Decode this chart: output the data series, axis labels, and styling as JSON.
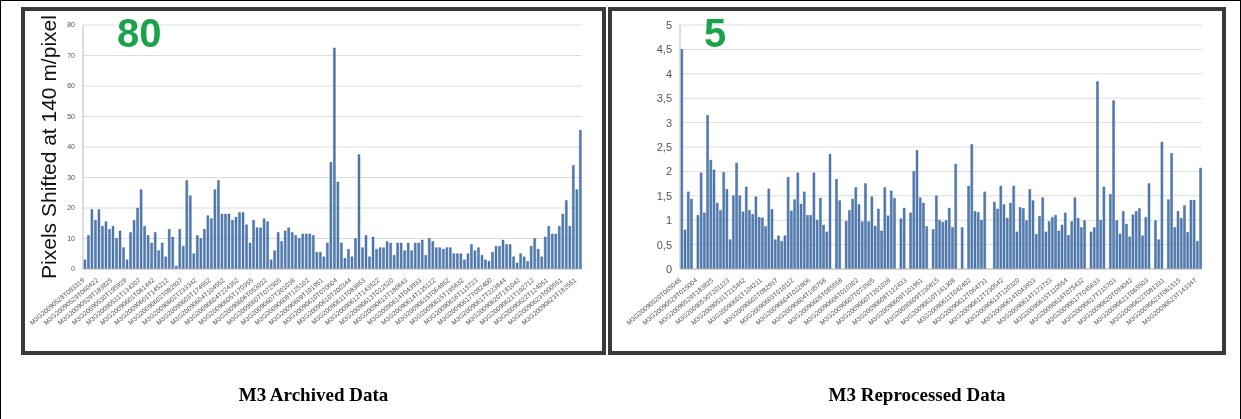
{
  "chart_data": [
    {
      "type": "bar",
      "title": "M3 Archived Data",
      "ylabel": "Pixels Shifted at 140 m/pixel",
      "annotations": [
        "80"
      ],
      "color": "#4f7fb8",
      "grid": "y",
      "ylim": [
        0,
        80
      ],
      "yticks": [
        0,
        10,
        20,
        30,
        40,
        50,
        60,
        70,
        80
      ],
      "categories": [
        "M3G20090528T083319",
        null,
        null,
        null,
        "M3G20090529T060422",
        null,
        null,
        null,
        "M3G20090529T183825",
        null,
        null,
        null,
        "M3G20090530T195929",
        null,
        null,
        null,
        "M3G20090531T134207",
        null,
        null,
        null,
        "M3G20090601T061442",
        null,
        null,
        null,
        "M3G20090601T145212",
        null,
        null,
        null,
        "M3G20090602T082937",
        null,
        null,
        null,
        "M3G20090602T233342",
        null,
        null,
        null,
        "M3G20090603T174552",
        null,
        null,
        null,
        "M3G20090604T104552",
        null,
        null,
        null,
        "M3G20090604T224352",
        null,
        null,
        null,
        "M3G20090605T170355",
        null,
        null,
        null,
        "M3G20090606T053022",
        null,
        null,
        null,
        "M3G20090607T072505",
        null,
        null,
        null,
        "M3G20090607T201038",
        null,
        null,
        null,
        "M3G20090608T125102",
        null,
        null,
        null,
        "M3G20090609T101951",
        null,
        null,
        null,
        "M3G20090610T070604",
        null,
        null,
        null,
        "M3G20090610T200344",
        null,
        null,
        null,
        "M3G20090611T083653",
        null,
        null,
        null,
        "M3G20090612T143522",
        null,
        null,
        null,
        "M3G20090613T022520",
        null,
        null,
        null,
        "M3G20090613T180643",
        null,
        null,
        null,
        "M3G20090614T043933",
        null,
        null,
        null,
        "M3G20090614T135122",
        null,
        null,
        null,
        "M3G20090615T064852",
        null,
        null,
        null,
        "M3G20090615T195632",
        null,
        null,
        null,
        "M3G20090616T115723",
        null,
        null,
        null,
        "M3G20090617T082400",
        null,
        null,
        null,
        "M3G20090617T223844",
        null,
        null,
        null,
        "M3G20090620T181042",
        null,
        null,
        null,
        "M3G20090621T192712",
        null,
        null,
        null,
        "M3G20090622T124051",
        null,
        null,
        null,
        "M3G20090623T000551",
        null,
        null,
        null,
        "M3G20090623T182551",
        null
      ],
      "values": [
        3,
        11,
        19.5,
        16,
        19.5,
        14,
        15.5,
        13,
        14,
        10,
        12.5,
        7,
        3,
        12,
        16,
        20,
        26,
        14,
        11,
        8.5,
        12,
        6,
        8.5,
        4,
        13,
        10.5,
        1,
        13,
        7.5,
        29,
        24,
        5,
        11,
        10,
        13,
        17.5,
        16.5,
        26,
        29,
        18,
        18,
        18,
        16,
        17,
        18.5,
        18.5,
        14.5,
        8.5,
        16,
        13.5,
        13.5,
        16.5,
        15.5,
        3,
        6,
        12,
        9,
        12.5,
        13.5,
        12,
        11,
        10,
        11.5,
        11.5,
        11.5,
        11,
        5.5,
        5.5,
        4,
        8.5,
        35,
        72.5,
        28.5,
        8.5,
        3.5,
        6.5,
        4,
        10,
        37.5,
        7,
        11,
        4,
        10.5,
        6.5,
        7,
        7,
        9,
        8.5,
        4.5,
        8.5,
        8.5,
        6,
        8.5,
        6,
        8.5,
        8.5,
        9.5,
        4.5,
        10,
        9,
        7,
        7,
        6.5,
        7,
        7,
        5,
        5,
        5,
        3,
        5,
        8,
        6,
        7,
        4.5,
        3,
        2.5,
        5.5,
        7.5,
        7.5,
        9.5,
        8,
        8,
        4,
        2,
        5,
        4,
        2.5,
        7.5,
        10,
        6.5,
        4,
        10.5,
        14,
        11.5,
        11.5,
        14,
        18,
        22.5,
        14,
        34,
        26,
        45.5
      ]
    },
    {
      "type": "bar",
      "title": "M3 Reprocessed Data",
      "annotations": [
        "5"
      ],
      "color": "#4f7fb8",
      "grid": "y",
      "ylim": [
        0,
        5
      ],
      "yticks": [
        0,
        {
          "value": 0.5,
          "label": "0,5"
        },
        1,
        {
          "value": 1.5,
          "label": "1,5"
        },
        2,
        {
          "value": 2.5,
          "label": "2,5"
        },
        3,
        {
          "value": 3.5,
          "label": "3,5"
        },
        4,
        {
          "value": 4.5,
          "label": "4,5"
        },
        5
      ],
      "categories": [
        "M3G20090520T065048",
        null,
        null,
        null,
        null,
        "M3G20090529T015004",
        null,
        null,
        null,
        null,
        "M3G20090529T183825",
        null,
        null,
        null,
        null,
        "M3G20090530T201123",
        null,
        null,
        null,
        null,
        "M3G20090531T215442",
        null,
        null,
        null,
        null,
        "M3G20090601T104211",
        null,
        null,
        null,
        null,
        "M3G20090602T082937",
        null,
        null,
        null,
        null,
        "M3G20090603T010112",
        null,
        null,
        null,
        null,
        "M3G20090604T022806",
        null,
        null,
        null,
        null,
        "M3G20090604T195758",
        null,
        null,
        null,
        null,
        "M3G20090605T085558",
        null,
        null,
        null,
        null,
        "M3G20090606T010302",
        null,
        null,
        null,
        null,
        "M3G20090607T073505",
        null,
        null,
        null,
        null,
        "M3G20090607T201038",
        null,
        null,
        null,
        null,
        "M3G20090608T122433",
        null,
        null,
        null,
        null,
        "M3G20090609T101951",
        null,
        null,
        null,
        null,
        "M3G20090609T230815",
        null,
        null,
        null,
        null,
        "M3G20090610T161308",
        null,
        null,
        null,
        null,
        "M3G20090611T042402",
        null,
        null,
        null,
        null,
        "M3G20090612T064731",
        null,
        null,
        null,
        null,
        "M3G20090612T230542",
        null,
        null,
        null,
        null,
        "M3G20090613T120320",
        null,
        null,
        null,
        null,
        "M3G20090614T043933",
        null,
        null,
        null,
        null,
        "M3G20090614T173733",
        null,
        null,
        null,
        null,
        "M3G20090615T110554",
        null,
        null,
        null,
        null,
        "M3G20090616T075432",
        null,
        null,
        null,
        null,
        "M3G20090617T045633",
        null,
        null,
        null,
        null,
        "M3G20090617T215703",
        null,
        null,
        null,
        null,
        "M3G20090620T094042",
        null,
        null,
        null,
        null,
        "M3G20090621T065503",
        null,
        null,
        null,
        null,
        "M3G20090622T081331",
        null,
        null,
        null,
        null,
        "M3G20090623T061515",
        null,
        null,
        null,
        null,
        "M3G20090623T143347",
        null
      ],
      "values": [
        4.5,
        0.8,
        1.58,
        1.43,
        null,
        1.1,
        1.97,
        1.15,
        3.15,
        2.23,
        2.03,
        1.35,
        1.2,
        1.98,
        1.63,
        0.6,
        1.5,
        2.17,
        1.5,
        1.17,
        1.68,
        1.2,
        1.12,
        1.48,
        1.06,
        1.05,
        0.87,
        1.64,
        1.22,
        0.6,
        0.68,
        0.57,
        0.68,
        1.88,
        1.19,
        1.42,
        1.97,
        1.33,
        1.58,
        1.1,
        1.1,
        1.97,
        1.0,
        1.45,
        0.9,
        0.76,
        2.35,
        null,
        1.84,
        1.4,
        null,
        0.98,
        1.2,
        1.43,
        1.67,
        1.32,
        0.97,
        1.75,
        0.97,
        1.48,
        0.88,
        1.23,
        0.78,
        1.67,
        1.09,
        1.6,
        1.45,
        null,
        1.03,
        1.25,
        null,
        1.15,
        2.0,
        2.43,
        1.46,
        1.35,
        0.87,
        null,
        0.81,
        1.5,
        1.0,
        0.96,
        0.99,
        1.25,
        0.85,
        2.15,
        null,
        0.85,
        null,
        1.7,
        2.55,
        1.18,
        1.16,
        1.0,
        1.58,
        null,
        null,
        1.37,
        1.23,
        1.7,
        1.32,
        1.04,
        1.35,
        1.7,
        0.76,
        1.26,
        1.24,
        0.99,
        1.63,
        1.4,
        0.71,
        1.08,
        1.46,
        0.76,
        0.97,
        1.06,
        1.1,
        0.78,
        0.9,
        1.15,
        0.69,
        0.97,
        1.46,
        1.04,
        0.85,
        0.99,
        null,
        0.76,
        0.85,
        3.84,
        1.0,
        1.68,
        null,
        1.53,
        3.45,
        0.99,
        0.72,
        1.18,
        0.92,
        0.66,
        1.11,
        1.18,
        1.24,
        0.68,
        1.06,
        1.75,
        null,
        0.99,
        0.6,
        2.6,
        null,
        1.42,
        2.37,
        0.85,
        1.18,
        1.04,
        1.3,
        0.75,
        1.41,
        1.41,
        0.57,
        2.07
      ]
    }
  ]
}
